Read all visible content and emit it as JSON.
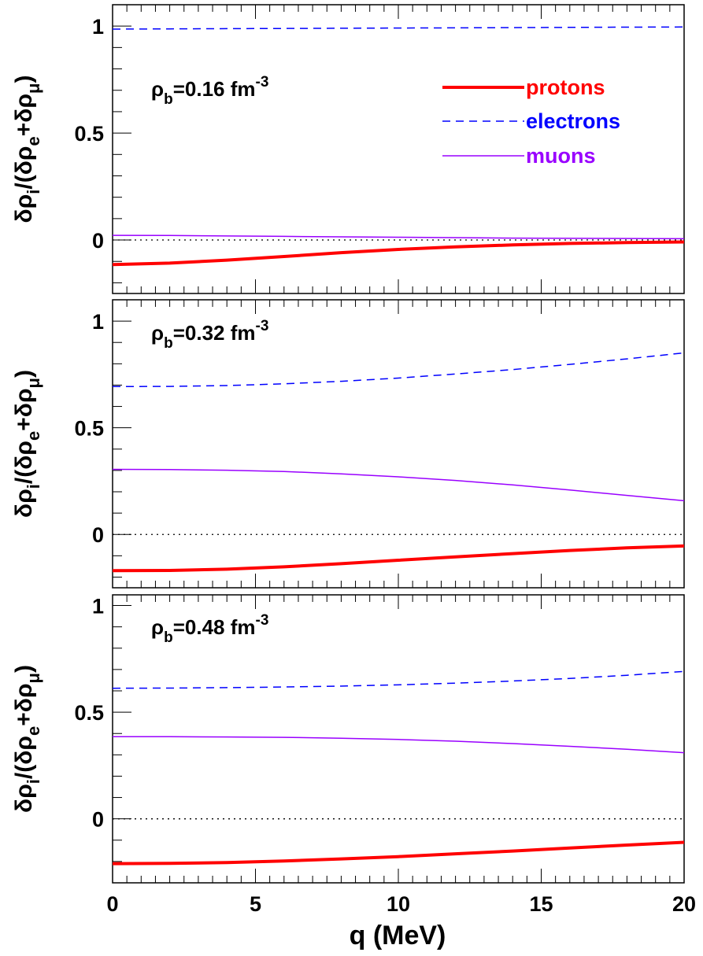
{
  "figure": {
    "xlabel": "q (MeV)",
    "ylabel": {
      "main": "δρ",
      "sub1": "i",
      "mid": "/(δρ",
      "sub2": "e",
      "plus": "+δρ",
      "sub3": "μ",
      "close": ")"
    },
    "legend": {
      "placement": "top-right of top panel",
      "entries": [
        {
          "label": "protons",
          "color": "#ff0000",
          "style": "solid-thick"
        },
        {
          "label": "electrons",
          "color": "#0000ff",
          "style": "dashed"
        },
        {
          "label": "muons",
          "color": "#9900ff",
          "style": "solid-thin"
        }
      ]
    },
    "colors": {
      "protons": "#ff0000",
      "electrons": "#0000ff",
      "muons": "#9900ff",
      "zero_line": "#000000"
    }
  },
  "chart_data": [
    {
      "type": "line",
      "annotation": {
        "rho": "ρ",
        "sub": "b",
        "value": "=0.16 fm",
        "sup": "-3"
      },
      "xlim": [
        0,
        20
      ],
      "ylim": [
        -0.25,
        1.1
      ],
      "x_ticks": [
        "0",
        "5",
        "10",
        "15",
        "20"
      ],
      "y_ticks": [
        "0",
        "0.5",
        "1"
      ],
      "reference_line": {
        "y": 0,
        "style": "dotted"
      },
      "x": [
        0,
        2,
        4,
        6,
        8,
        10,
        12,
        14,
        16,
        18,
        20
      ],
      "series": [
        {
          "name": "protons",
          "values": [
            -0.115,
            -0.108,
            -0.094,
            -0.077,
            -0.059,
            -0.044,
            -0.032,
            -0.023,
            -0.016,
            -0.012,
            -0.009
          ]
        },
        {
          "name": "electrons",
          "values": [
            0.986,
            0.987,
            0.988,
            0.989,
            0.99,
            0.991,
            0.992,
            0.993,
            0.994,
            0.995,
            0.996
          ]
        },
        {
          "name": "muons",
          "values": [
            0.022,
            0.021,
            0.019,
            0.017,
            0.015,
            0.013,
            0.011,
            0.009,
            0.008,
            0.007,
            0.006
          ]
        }
      ]
    },
    {
      "type": "line",
      "annotation": {
        "rho": "ρ",
        "sub": "b",
        "value": "=0.32 fm",
        "sup": "-3"
      },
      "xlim": [
        0,
        20
      ],
      "ylim": [
        -0.25,
        1.1
      ],
      "x_ticks": [
        "0",
        "5",
        "10",
        "15",
        "20"
      ],
      "y_ticks": [
        "0",
        "0.5",
        "1"
      ],
      "reference_line": {
        "y": 0,
        "style": "dotted"
      },
      "x": [
        0,
        2,
        4,
        6,
        8,
        10,
        12,
        14,
        16,
        18,
        20
      ],
      "series": [
        {
          "name": "protons",
          "values": [
            -0.17,
            -0.169,
            -0.163,
            -0.152,
            -0.137,
            -0.121,
            -0.105,
            -0.09,
            -0.075,
            -0.063,
            -0.054
          ]
        },
        {
          "name": "electrons",
          "values": [
            0.693,
            0.694,
            0.698,
            0.706,
            0.718,
            0.733,
            0.752,
            0.773,
            0.797,
            0.823,
            0.851
          ]
        },
        {
          "name": "muons",
          "values": [
            0.305,
            0.304,
            0.301,
            0.295,
            0.284,
            0.27,
            0.253,
            0.232,
            0.208,
            0.183,
            0.158
          ]
        }
      ]
    },
    {
      "type": "line",
      "annotation": {
        "rho": "ρ",
        "sub": "b",
        "value": "=0.48 fm",
        "sup": "-3"
      },
      "xlim": [
        0,
        20
      ],
      "ylim": [
        -0.3,
        1.05
      ],
      "x_ticks": [
        "0",
        "5",
        "10",
        "15",
        "20"
      ],
      "y_ticks": [
        "0",
        "0.5",
        "1"
      ],
      "reference_line": {
        "y": 0,
        "style": "dotted"
      },
      "x": [
        0,
        2,
        4,
        6,
        8,
        10,
        12,
        14,
        16,
        18,
        20
      ],
      "series": [
        {
          "name": "protons",
          "values": [
            -0.21,
            -0.209,
            -0.205,
            -0.198,
            -0.188,
            -0.177,
            -0.164,
            -0.151,
            -0.137,
            -0.123,
            -0.11
          ]
        },
        {
          "name": "electrons",
          "values": [
            0.612,
            0.613,
            0.615,
            0.618,
            0.622,
            0.628,
            0.636,
            0.646,
            0.658,
            0.673,
            0.691
          ]
        },
        {
          "name": "muons",
          "values": [
            0.385,
            0.385,
            0.384,
            0.382,
            0.378,
            0.372,
            0.364,
            0.353,
            0.34,
            0.326,
            0.31
          ]
        }
      ]
    }
  ]
}
